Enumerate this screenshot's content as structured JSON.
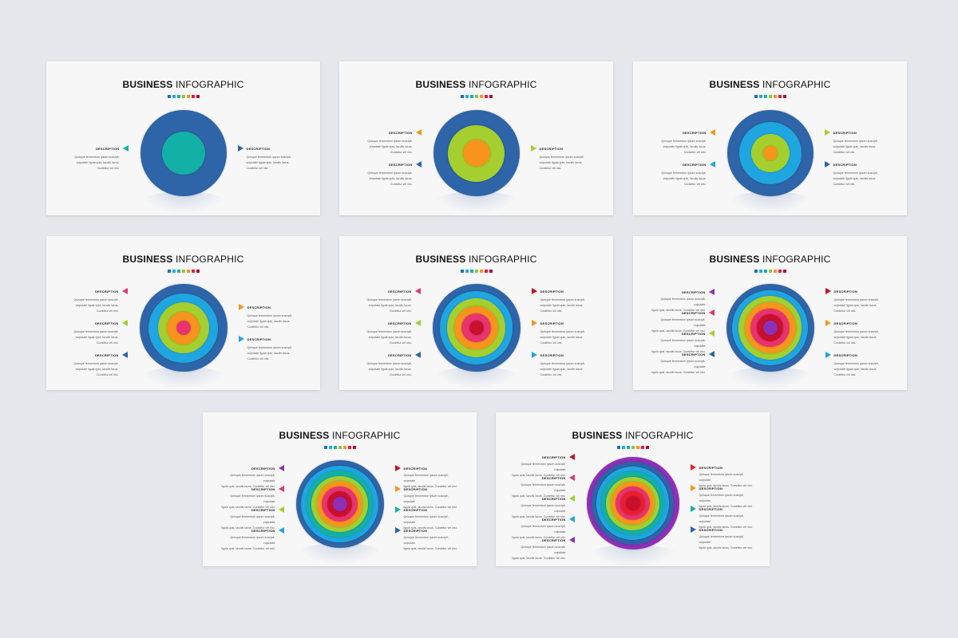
{
  "title_bold": "BUSINESS",
  "title_rest": " INFOGRAPHIC",
  "dots": [
    "#1f6fb5",
    "#25a9e0",
    "#1ab0a8",
    "#8cc63f",
    "#f7941d",
    "#e6194b",
    "#b5102b"
  ],
  "desc": {
    "heading": "DESCRIPTION",
    "text3": "Quisque fermentum ipsum suscipit,\nvulputate ligula quis, iaculis lacus.\nCurabitur vel nisi.",
    "text2": "Quisque fermentum ipsum suscipit, vulputate\nligula quis, iaculis lacus. Curabitur vel nisi."
  },
  "colors": {
    "navy": "#2e64a8",
    "teal": "#13b0a5",
    "green": "#8dc63f",
    "orange": "#f7941d",
    "sky": "#1fa6e0",
    "red": "#e81e2e",
    "pink": "#e8336e",
    "crimson": "#c8102e",
    "purple": "#8e2fb7",
    "lime": "#a4cf2e"
  },
  "slides": [
    {
      "rings": [
        "#2e64a8",
        "#13b0a5"
      ],
      "left": [
        {
          "c": "#13b0a5"
        }
      ],
      "right": [
        {
          "c": "#2e64a8"
        }
      ]
    },
    {
      "rings": [
        "#2e64a8",
        "#a4cf2e",
        "#f7941d"
      ],
      "left": [
        {
          "c": "#f7941d"
        },
        {
          "c": "#2e64a8"
        }
      ],
      "right": [
        {
          "c": "#a4cf2e"
        }
      ]
    },
    {
      "rings": [
        "#2e64a8",
        "#1fa6e0",
        "#a4cf2e",
        "#f7941d"
      ],
      "left": [
        {
          "c": "#f7941d"
        },
        {
          "c": "#1fa6e0"
        }
      ],
      "right": [
        {
          "c": "#a4cf2e"
        },
        {
          "c": "#2e64a8"
        }
      ]
    },
    {
      "rings": [
        "#2e64a8",
        "#1fa6e0",
        "#a4cf2e",
        "#f7941d",
        "#e8336e"
      ],
      "left": [
        {
          "c": "#e8336e"
        },
        {
          "c": "#a4cf2e"
        },
        {
          "c": "#2e64a8"
        }
      ],
      "right": [
        {
          "c": "#f7941d"
        },
        {
          "c": "#1fa6e0"
        }
      ]
    },
    {
      "rings": [
        "#2e64a8",
        "#1fa6e0",
        "#a4cf2e",
        "#f7941d",
        "#e8336e",
        "#c8102e"
      ],
      "left": [
        {
          "c": "#e8336e"
        },
        {
          "c": "#a4cf2e"
        },
        {
          "c": "#2e64a8"
        }
      ],
      "right": [
        {
          "c": "#c8102e"
        },
        {
          "c": "#f7941d"
        },
        {
          "c": "#1fa6e0"
        }
      ]
    },
    {
      "rings": [
        "#2e64a8",
        "#1fa6e0",
        "#a4cf2e",
        "#f7941d",
        "#e8336e",
        "#c8102e",
        "#8e2fb7"
      ],
      "left": [
        {
          "c": "#8e2fb7"
        },
        {
          "c": "#e8336e"
        },
        {
          "c": "#a4cf2e"
        },
        {
          "c": "#2e64a8"
        }
      ],
      "right": [
        {
          "c": "#c8102e"
        },
        {
          "c": "#f7941d"
        },
        {
          "c": "#1fa6e0"
        }
      ]
    },
    {
      "rings": [
        "#2e64a8",
        "#1fa6e0",
        "#13b0a5",
        "#a4cf2e",
        "#f7941d",
        "#e8336e",
        "#c8102e",
        "#8e2fb7"
      ],
      "left": [
        {
          "c": "#8e2fb7"
        },
        {
          "c": "#e8336e"
        },
        {
          "c": "#a4cf2e"
        },
        {
          "c": "#1fa6e0"
        }
      ],
      "right": [
        {
          "c": "#c8102e"
        },
        {
          "c": "#f7941d"
        },
        {
          "c": "#13b0a5"
        },
        {
          "c": "#2e64a8"
        }
      ]
    },
    {
      "rings": [
        "#8e2fb7",
        "#2e64a8",
        "#1fa6e0",
        "#13b0a5",
        "#a4cf2e",
        "#f7941d",
        "#e8336e",
        "#e81e2e",
        "#c8102e"
      ],
      "left": [
        {
          "c": "#c8102e"
        },
        {
          "c": "#e8336e"
        },
        {
          "c": "#a4cf2e"
        },
        {
          "c": "#1fa6e0"
        },
        {
          "c": "#8e2fb7"
        }
      ],
      "right": [
        {
          "c": "#e81e2e"
        },
        {
          "c": "#f7941d"
        },
        {
          "c": "#13b0a5"
        },
        {
          "c": "#2e64a8"
        }
      ]
    }
  ]
}
